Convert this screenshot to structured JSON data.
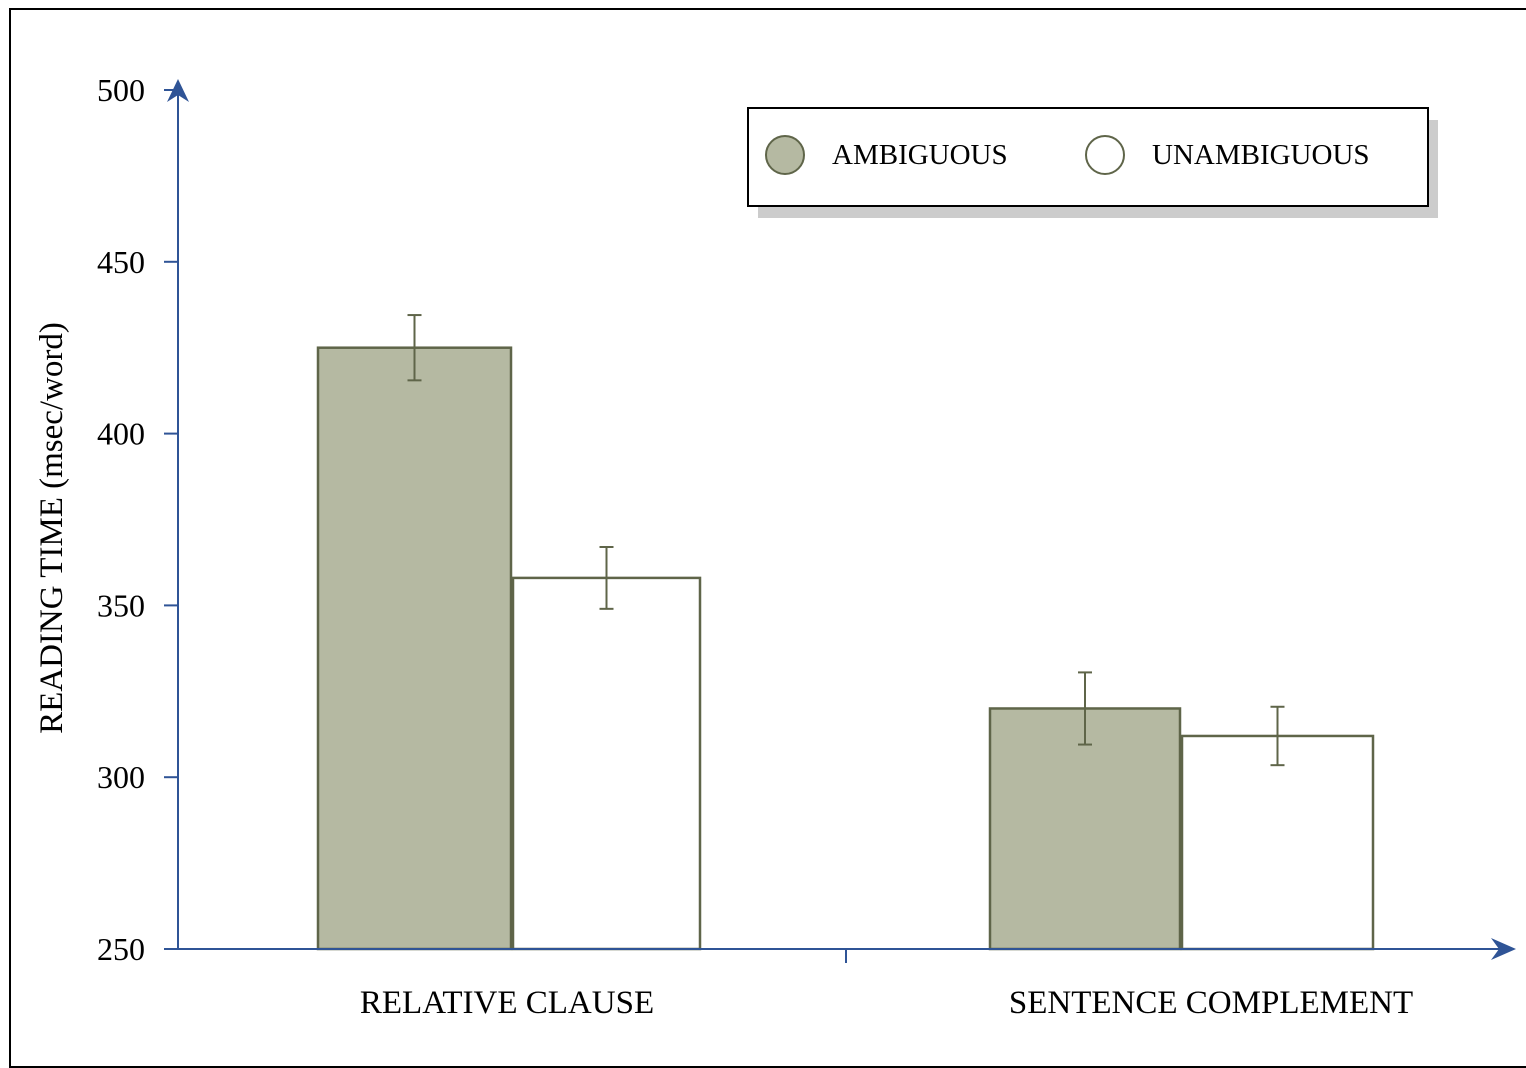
{
  "chart_data": {
    "type": "bar",
    "categories": [
      "RELATIVE CLAUSE",
      "SENTENCE COMPLEMENT"
    ],
    "series": [
      {
        "name": "AMBIGUOUS",
        "values": [
          425,
          320
        ],
        "errors": [
          9.5,
          10.5
        ]
      },
      {
        "name": "UNAMBIGUOUS",
        "values": [
          358,
          312
        ],
        "errors": [
          9,
          8.5
        ]
      }
    ],
    "ylabel": "READING TIME (msec/word)",
    "ylim": [
      250,
      500
    ],
    "yticks": [
      "250",
      "300",
      "350",
      "400",
      "450",
      "500"
    ],
    "legend_position": "top-right",
    "grid": false,
    "colors": {
      "axis": "#2f5496",
      "ambiguous_fill": "#b5b9a2",
      "bar_stroke": "#5f6549",
      "unambiguous_fill": "#ffffff",
      "legend_shadow": "#cccccc"
    }
  }
}
